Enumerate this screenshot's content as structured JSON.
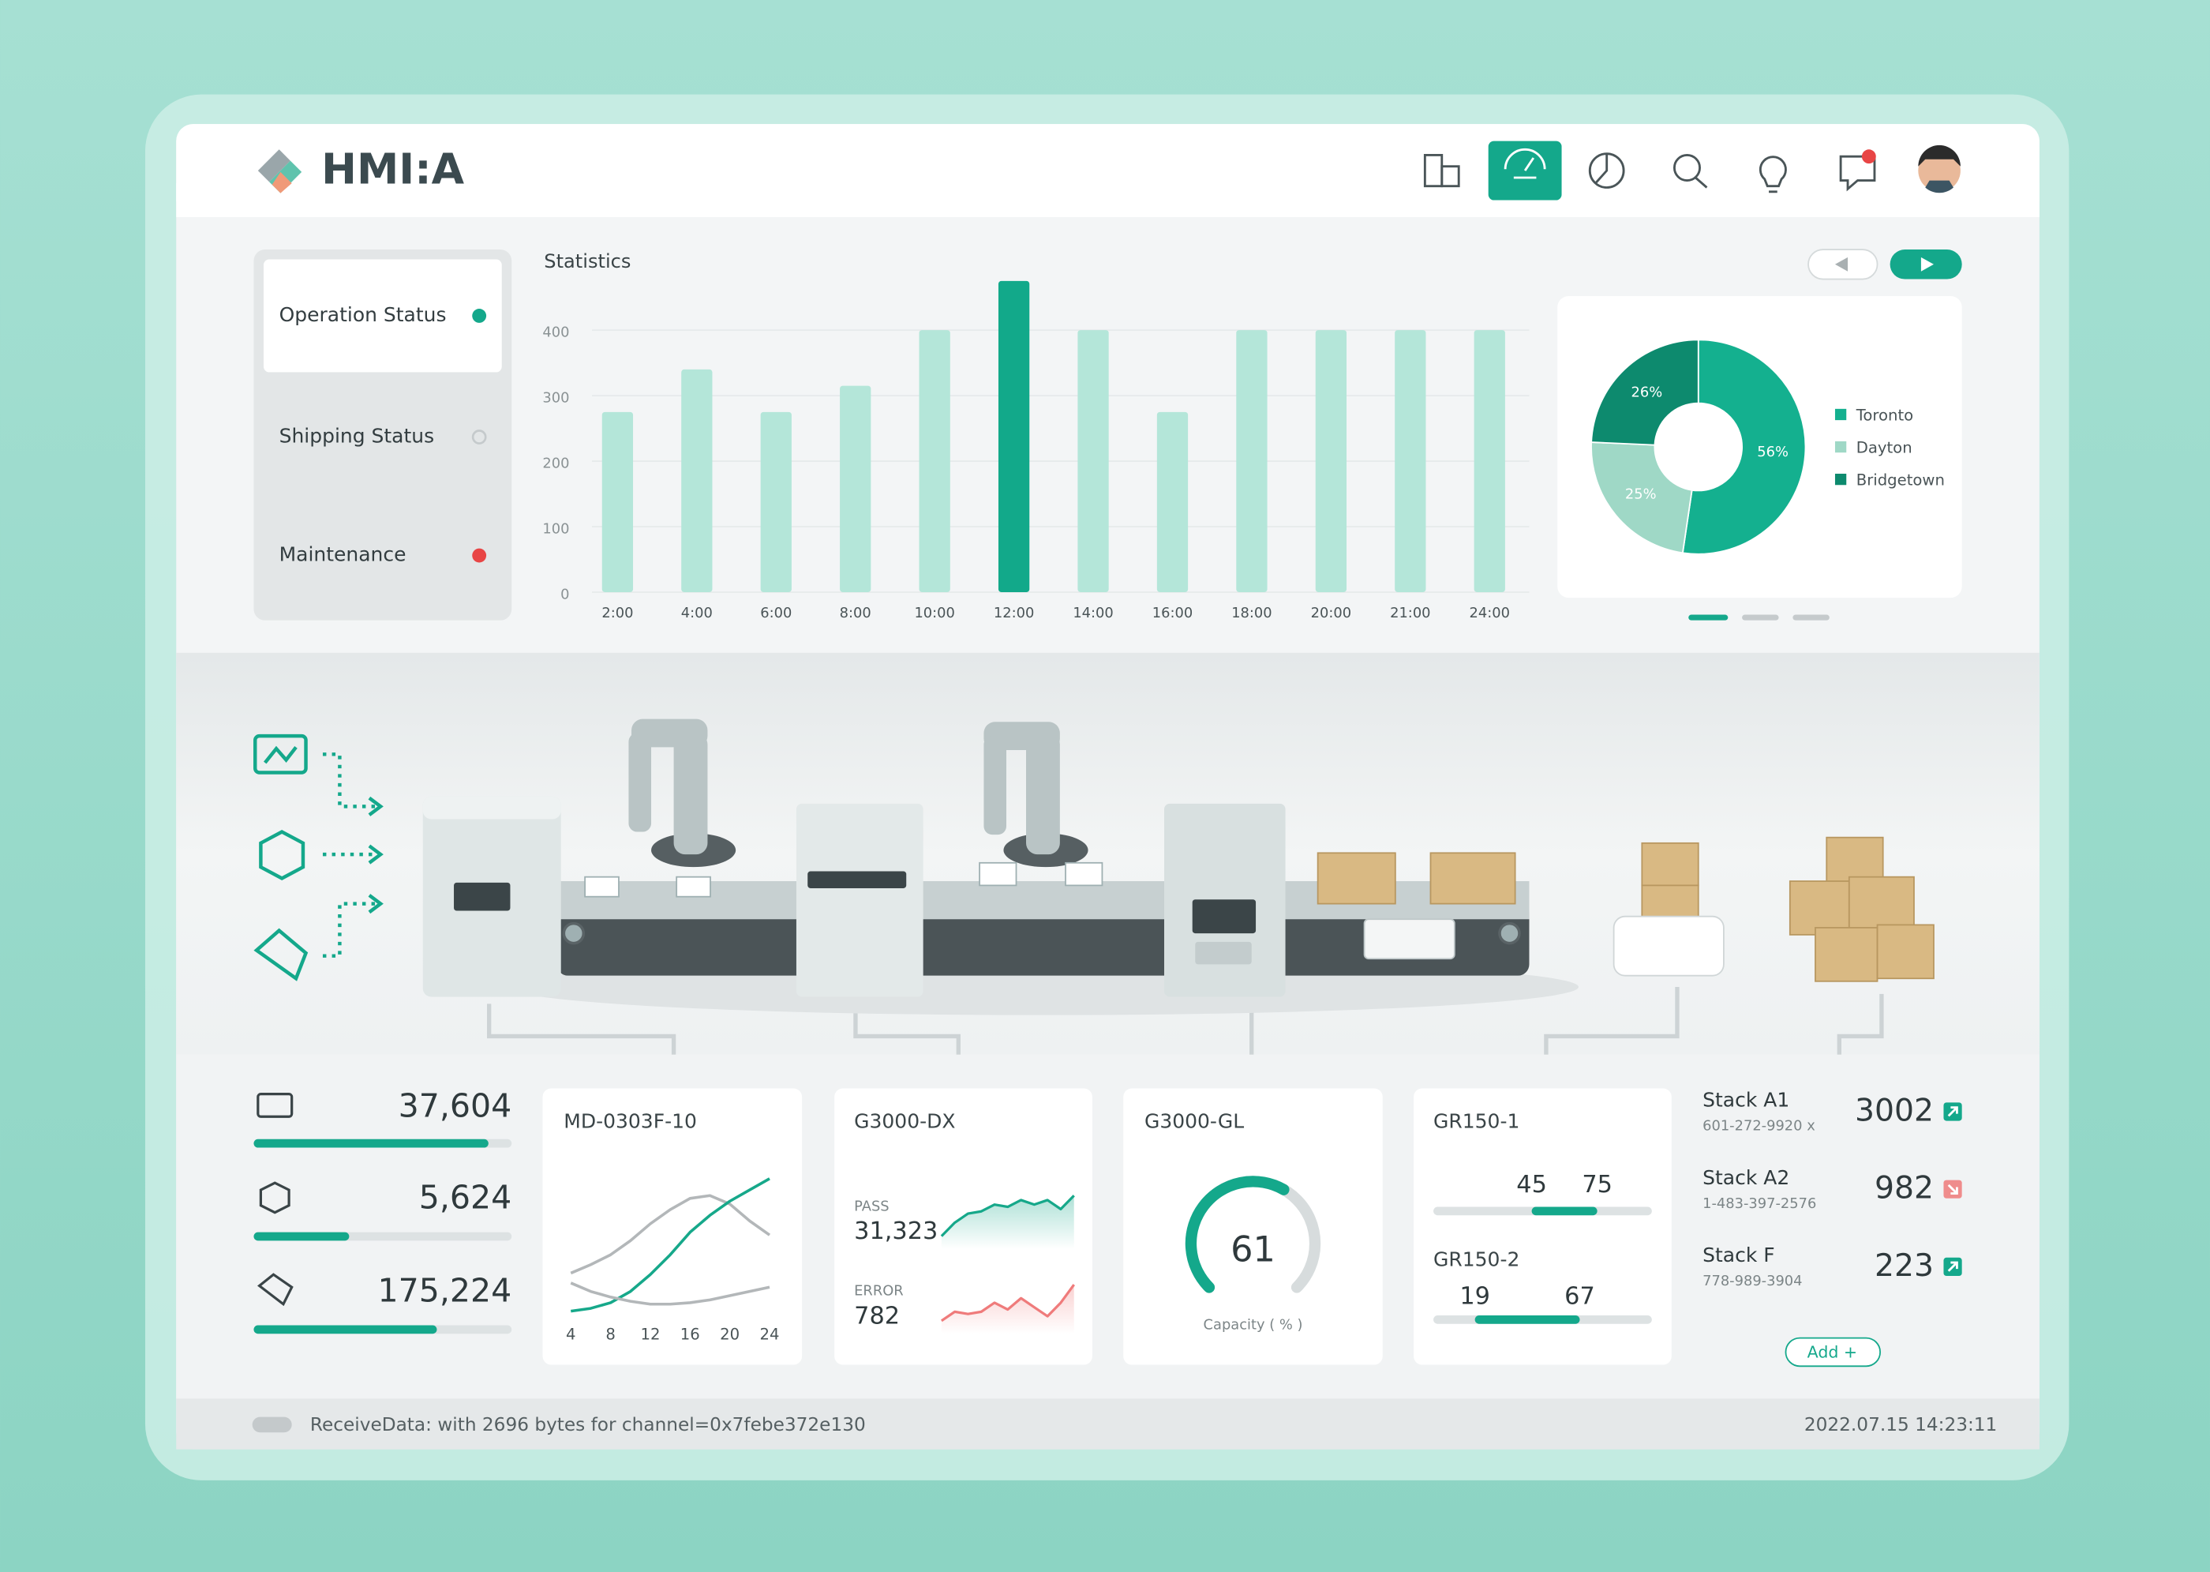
{
  "header": {
    "logo": "HMI:A"
  },
  "menu": {
    "items": [
      {
        "label": "Operation Status",
        "color": "#14a88b",
        "dot_style": "filled",
        "active": true
      },
      {
        "label": "Shipping Status",
        "color": "#c5cacc",
        "dot_style": "hollow",
        "active": false
      },
      {
        "label": "Maintenance",
        "color": "#e84545",
        "dot_style": "filled",
        "active": false
      }
    ]
  },
  "chart_data": [
    {
      "type": "bar",
      "title": "Statistics",
      "categories": [
        "2:00",
        "4:00",
        "6:00",
        "8:00",
        "10:00",
        "12:00",
        "14:00",
        "16:00",
        "18:00",
        "20:00",
        "21:00",
        "24:00"
      ],
      "values": [
        275,
        340,
        275,
        315,
        400,
        475,
        400,
        275,
        400,
        400,
        400,
        400
      ],
      "colors": [
        "#b4e6d9",
        "#b4e6d9",
        "#b4e6d9",
        "#b4e6d9",
        "#b4e6d9",
        "#12a98a",
        "#b4e6d9",
        "#b4e6d9",
        "#b4e6d9",
        "#b4e6d9",
        "#b4e6d9",
        "#b4e6d9"
      ],
      "ylim": [
        0,
        480
      ],
      "yticks": [
        0,
        100,
        200,
        300,
        400
      ],
      "grid": true
    },
    {
      "type": "pie",
      "categories": [
        "Toronto",
        "Dayton",
        "Bridgetown"
      ],
      "values": [
        56,
        25,
        26
      ],
      "value_labels": [
        "56%",
        "25%",
        "26%"
      ],
      "colors": [
        "#14b08f",
        "#9fd8c6",
        "#0d8a6e"
      ],
      "legend": "right"
    },
    {
      "type": "line",
      "x": [
        4,
        6,
        8,
        10,
        12,
        14,
        16,
        18,
        20,
        22,
        24
      ],
      "xlim": [
        4,
        24
      ],
      "xticks": [
        4,
        8,
        12,
        16,
        20,
        24
      ],
      "ylim": [
        0,
        100
      ],
      "series": [
        {
          "color": "#b3b7b9",
          "values": [
            27,
            33,
            40,
            50,
            62,
            72,
            80,
            82,
            76,
            64,
            54
          ]
        },
        {
          "color": "#16a88a",
          "values": [
            0,
            2,
            6,
            14,
            26,
            40,
            56,
            68,
            78,
            86,
            94
          ]
        },
        {
          "color": "#b3b7b9",
          "values": [
            20,
            14,
            10,
            7,
            5,
            5,
            6,
            8,
            11,
            14,
            17
          ]
        }
      ]
    },
    {
      "type": "area",
      "values": [
        1,
        4,
        6,
        6.5,
        8,
        7.5,
        9,
        8,
        9,
        7,
        10
      ],
      "ylim": [
        0,
        10
      ],
      "color": "#16a88a"
    },
    {
      "type": "area",
      "values": [
        1,
        3,
        2.5,
        3,
        5,
        3.5,
        6,
        4,
        2,
        5,
        9
      ],
      "ylim": [
        0,
        10
      ],
      "color": "#ef7b7b"
    }
  ],
  "counters": [
    {
      "value": "37,604",
      "progress": 91
    },
    {
      "value": "5,624",
      "progress": 37
    },
    {
      "value": "175,224",
      "progress": 71
    }
  ],
  "cards": {
    "md": {
      "title": "MD-0303F-10"
    },
    "dx": {
      "title": "G3000-DX",
      "pass_label": "PASS",
      "pass": "31,323",
      "error_label": "ERROR",
      "error": "782"
    },
    "gl": {
      "title": "G3000-GL",
      "value": 61,
      "lim": [
        0,
        100
      ],
      "caption": "Capacity ( % )"
    },
    "gr": [
      {
        "title": "GR150-1",
        "low": 45,
        "high": 75,
        "lim": [
          0,
          100
        ]
      },
      {
        "title": "GR150-2",
        "low": 19,
        "high": 67,
        "lim": [
          0,
          100
        ]
      }
    ]
  },
  "stacks": {
    "items": [
      {
        "name": "Stack A1",
        "phone": "601-272-9920 x",
        "value": 3002,
        "trend": "up"
      },
      {
        "name": "Stack A2",
        "phone": "1-483-397-2576",
        "value": 982,
        "trend": "down"
      },
      {
        "name": "Stack F",
        "phone": "778-989-3904",
        "value": 223,
        "trend": "up"
      }
    ],
    "button": "Add +"
  },
  "status": {
    "message": "ReceiveData: with 2696 bytes for channel=0x7febe372e130",
    "timestamp": "2022.07.15 14:23:11"
  }
}
